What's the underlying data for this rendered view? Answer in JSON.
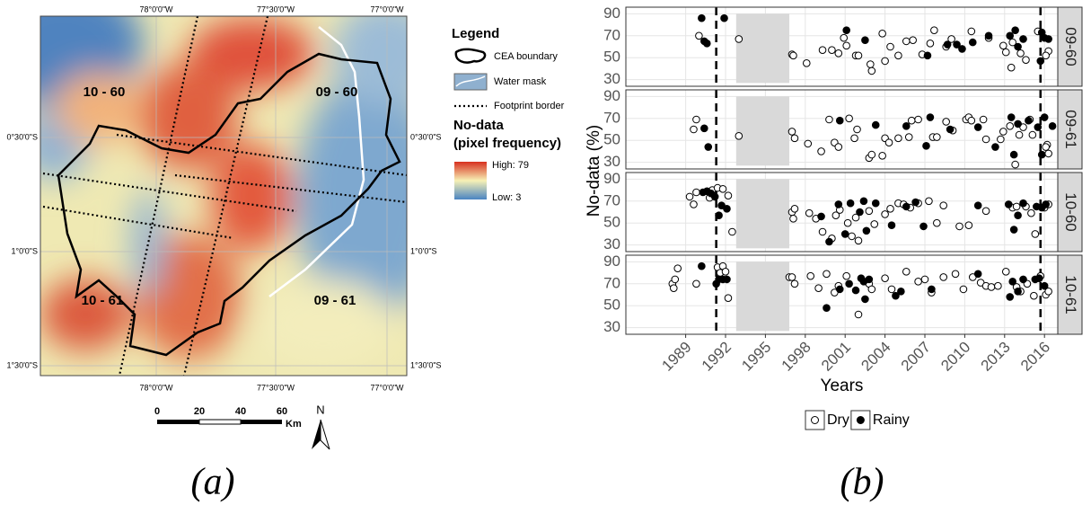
{
  "map": {
    "top_labels": [
      "78°0'0\"W",
      "77°30'0\"W",
      "77°0'0\"W"
    ],
    "bottom_labels": [
      "78°0'0\"W",
      "77°30'0\"W",
      "77°0'0\"W"
    ],
    "left_labels": [
      "0°30'0\"S",
      "1°0'0\"S",
      "1°30'0\"S"
    ],
    "right_labels": [
      "0°30'0\"S",
      "1°0'0\"S",
      "1°30'0\"S"
    ],
    "footprints": [
      "10 - 60",
      "09 - 60",
      "10 - 61",
      "09 - 61"
    ],
    "legend": {
      "title": "Legend",
      "items": [
        "CEA boundary",
        "Water mask",
        "Footprint border"
      ],
      "ramp_title": [
        "No-data",
        "(pixel frequency)"
      ],
      "high": "High: 79",
      "low": "Low: 3"
    },
    "scale": [
      "0",
      "20",
      "40",
      "60"
    ],
    "scale_unit": "Km",
    "north": "N"
  },
  "chart_data": {
    "type": "scatter",
    "x_label": "Years",
    "y_label": "No-data (%)",
    "xlim": [
      1984.5,
      2017.0
    ],
    "ylim": [
      24,
      96
    ],
    "xticks": [
      1989,
      1992,
      1995,
      1998,
      2001,
      2004,
      2007,
      2010,
      2013,
      2016
    ],
    "yticks": [
      30,
      50,
      70,
      90
    ],
    "grid": true,
    "vlines": [
      1991.3,
      2015.7
    ],
    "shade": {
      "xlim": [
        1992.8,
        1996.8
      ],
      "ylim": [
        27,
        90
      ],
      "color": "#d9d9d9"
    },
    "series": [
      {
        "name": "Dry",
        "color": "#000000",
        "filled": false
      },
      {
        "name": "Rainy",
        "color": "#000000",
        "filled": true
      }
    ],
    "facets": [
      {
        "label": "09-60",
        "series": [
          {
            "x": [
              1990.0,
              1993.0,
              1997.0,
              1997.1,
              1998.1,
              1999.3,
              2000.0,
              2000.5,
              2000.9,
              2001.1,
              2001.8,
              2002.0,
              2002.9,
              2003.0,
              2003.8,
              2004.0,
              2004.4,
              2005.0,
              2005.6,
              2006.1,
              2006.8,
              2007.4,
              2007.7,
              2008.6,
              2009.0,
              2010.5,
              2011.8,
              2012.9,
              2013.1,
              2013.5,
              2013.6,
              2014.2,
              2014.6,
              2015.5,
              2016.3,
              2016.1
            ],
            "values": [
              70,
              67,
              53,
              52,
              45,
              57,
              57,
              54,
              68,
              61,
              52,
              52,
              44,
              38,
              72,
              47,
              60,
              52,
              65,
              66,
              53,
              63,
              75,
              60,
              67,
              74,
              68,
              61,
              55,
              41,
              64,
              54,
              48,
              74,
              56,
              52
            ]
          },
          {
            "x": [
              1990.2,
              1990.4,
              1990.6,
              1991.9,
              2001.1,
              2002.5,
              2007.2,
              2008.7,
              2009.4,
              2009.8,
              2010.6,
              2011.8,
              2013.4,
              2013.8,
              2014.0,
              2014.4,
              2015.8,
              2016.0,
              2016.3,
              2015.7
            ],
            "values": [
              86,
              65,
              63,
              86,
              75,
              66,
              52,
              62,
              62,
              58,
              64,
              70,
              70,
              75,
              60,
              67,
              73,
              68,
              67,
              47
            ]
          }
        ]
      },
      {
        "label": "09-61",
        "series": [
          {
            "x": [
              1989.6,
              1989.8,
              1993.0,
              1997.0,
              1997.2,
              1998.2,
              1999.2,
              1999.8,
              2000.2,
              2000.5,
              2001.3,
              2001.7,
              2001.9,
              2002.8,
              2003.0,
              2003.8,
              2004.0,
              2004.3,
              2005.0,
              2005.8,
              2006.0,
              2006.5,
              2007.6,
              2007.9,
              2008.6,
              2009.1,
              2010.1,
              2010.3,
              2010.5,
              2011.4,
              2011.6,
              2012.7,
              2012.9,
              2013.4,
              2013.8,
              2014.1,
              2014.4,
              2014.9,
              2015.1,
              2016.2,
              2016.3,
              2016.1
            ],
            "values": [
              60,
              69,
              54,
              58,
              52,
              47,
              40,
              69,
              48,
              44,
              70,
              52,
              60,
              34,
              37,
              36,
              52,
              48,
              52,
              53,
              68,
              69,
              53,
              53,
              67,
              59,
              69,
              71,
              68,
              69,
              51,
              51,
              58,
              63,
              28,
              55,
              62,
              69,
              55,
              46,
              38,
              44
            ]
          },
          {
            "x": [
              1990.4,
              1990.7,
              2000.6,
              2003.3,
              2005.6,
              2007.1,
              2007.4,
              2008.9,
              2011.0,
              2012.3,
              2013.5,
              2013.7,
              2014.0,
              2014.8,
              2015.5,
              2015.8,
              2016.0,
              2016.6
            ],
            "values": [
              61,
              44,
              68,
              64,
              63,
              45,
              71,
              60,
              62,
              44,
              71,
              37,
              65,
              68,
              62,
              37,
              71,
              63
            ]
          }
        ]
      },
      {
        "label": "10-60",
        "series": [
          {
            "x": [
              1989.3,
              1989.6,
              1989.8,
              1990.8,
              1991.0,
              1991.4,
              1991.8,
              1992.2,
              1992.5,
              1997.0,
              1997.1,
              1997.2,
              1998.3,
              1998.8,
              1999.3,
              2000.0,
              2000.3,
              2000.6,
              2001.2,
              2001.5,
              2001.8,
              2002.0,
              2002.8,
              2003.2,
              2004.0,
              2004.4,
              2005.0,
              2005.4,
              2005.9,
              2006.5,
              2007.3,
              2007.9,
              2008.4,
              2009.6,
              2010.3,
              2011.6,
              2013.6,
              2013.9,
              2014.6,
              2015.0,
              2015.3,
              2016.0,
              2016.3
            ],
            "values": [
              74,
              67,
              78,
              73,
              80,
              82,
              81,
              75,
              42,
              60,
              54,
              63,
              59,
              54,
              42,
              36,
              57,
              62,
              50,
              38,
              55,
              34,
              61,
              49,
              58,
              63,
              68,
              67,
              64,
              68,
              70,
              50,
              66,
              47,
              48,
              61,
              64,
              65,
              65,
              59,
              40,
              64,
              67
            ]
          },
          {
            "x": [
              1990.3,
              1990.6,
              1990.9,
              1991.2,
              1991.5,
              1991.7,
              1992.1,
              1999.2,
              1999.8,
              2000.5,
              2001.0,
              2001.4,
              2002.1,
              2002.4,
              2002.6,
              2003.3,
              2004.5,
              2005.6,
              2006.3,
              2006.9,
              2011.0,
              2013.3,
              2013.7,
              2014.0,
              2014.4,
              2015.4,
              2015.8,
              2016.1
            ],
            "values": [
              78,
              79,
              77,
              74,
              57,
              66,
              63,
              56,
              33,
              67,
              40,
              68,
              60,
              70,
              43,
              68,
              48,
              65,
              69,
              47,
              66,
              67,
              44,
              57,
              68,
              65,
              64,
              67
            ]
          }
        ]
      },
      {
        "label": "10-61",
        "series": [
          {
            "x": [
              1988.0,
              1988.1,
              1988.2,
              1988.4,
              1989.8,
              1991.4,
              1991.8,
              1991.6,
              1992.0,
              1992.2,
              1996.8,
              1997.0,
              1997.2,
              1998.4,
              1999.0,
              1999.6,
              2000.2,
              2000.5,
              2001.1,
              2002.0,
              2002.8,
              2003.0,
              2004.0,
              2004.5,
              2005.6,
              2006.5,
              2007.0,
              2007.5,
              2008.4,
              2009.3,
              2009.9,
              2010.6,
              2011.2,
              2011.6,
              2012.0,
              2012.5,
              2013.1,
              2013.9,
              2014.2,
              2014.7,
              2015.2,
              2015.7,
              2016.1,
              2016.3
            ],
            "values": [
              70,
              66,
              74,
              84,
              70,
              85,
              86,
              80,
              81,
              57,
              76,
              76,
              70,
              77,
              66,
              79,
              62,
              68,
              77,
              42,
              70,
              65,
              75,
              65,
              81,
              72,
              74,
              62,
              76,
              79,
              65,
              76,
              71,
              68,
              67,
              68,
              81,
              67,
              63,
              70,
              59,
              77,
              60,
              63
            ]
          },
          {
            "x": [
              1990.2,
              1991.5,
              1991.8,
              1992.1,
              1991.3,
              1999.6,
              2000.6,
              2001.3,
              2001.8,
              2002.2,
              2002.4,
              2002.5,
              2002.8,
              2004.8,
              2005.2,
              2007.5,
              2011.0,
              2013.4,
              2013.6,
              2014.0,
              2014.4,
              2015.3,
              2015.6,
              2016.0
            ],
            "values": [
              86,
              74,
              74,
              74,
              70,
              48,
              65,
              70,
              64,
              75,
              72,
              56,
              74,
              59,
              63,
              65,
              79,
              58,
              72,
              63,
              74,
              74,
              75,
              68
            ]
          }
        ]
      }
    ]
  },
  "captions": [
    "(a)",
    "(b)"
  ]
}
